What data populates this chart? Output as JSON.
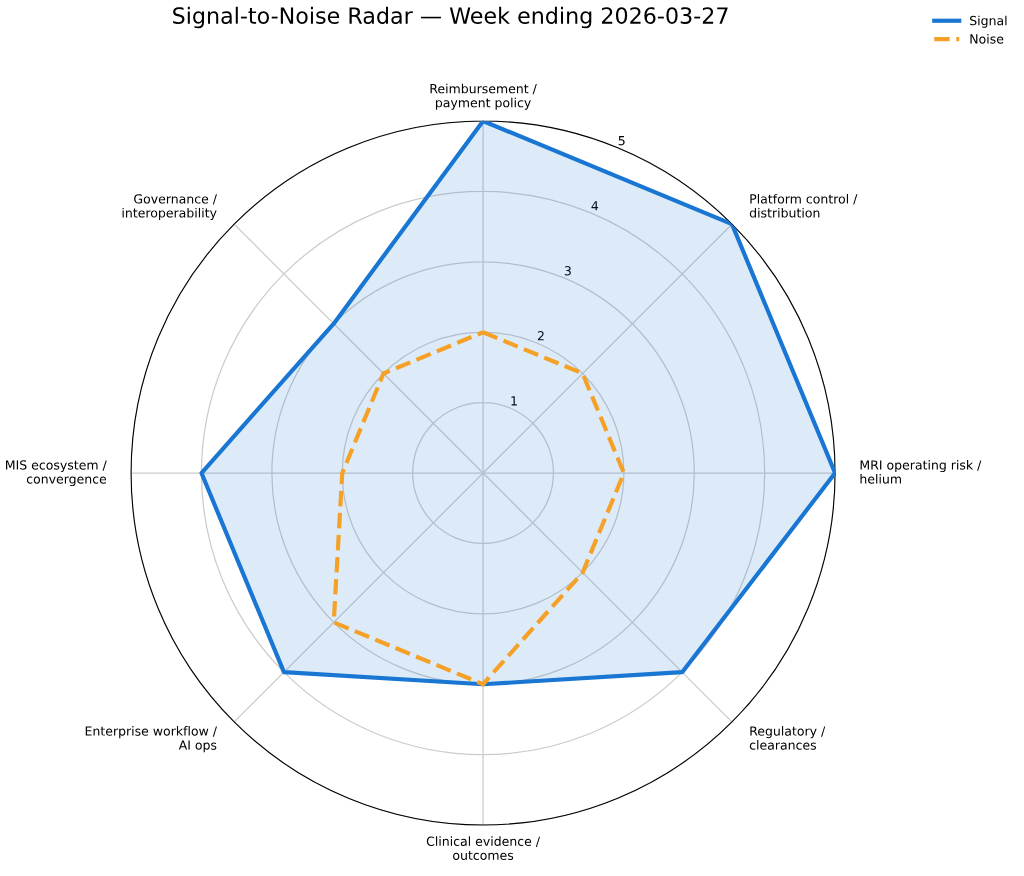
{
  "chart_data": {
    "type": "radar",
    "title": "Signal-to-Noise Radar — Week ending 2026-03-27",
    "categories": [
      "Reimbursement /\npayment policy",
      "Platform control /\ndistribution",
      "MRI operating risk /\nhelium",
      "Regulatory /\nclearances",
      "Clinical evidence /\noutcomes",
      "Enterprise workflow /\nAI ops",
      "MIS ecosystem /\nconvergence",
      "Governance /\ninteroperability"
    ],
    "series": [
      {
        "name": "Signal",
        "color": "#1976d2",
        "line_style": "solid",
        "values": [
          5,
          5,
          5,
          4,
          3,
          4,
          4,
          3
        ]
      },
      {
        "name": "Noise",
        "color": "#f5a027",
        "line_style": "dashed",
        "values": [
          2,
          2,
          2,
          2,
          3,
          3,
          2,
          2
        ]
      }
    ],
    "ylim": [
      0,
      5
    ],
    "yticks": [
      1,
      2,
      3,
      4,
      5
    ],
    "grid": true,
    "legend": "top right"
  }
}
